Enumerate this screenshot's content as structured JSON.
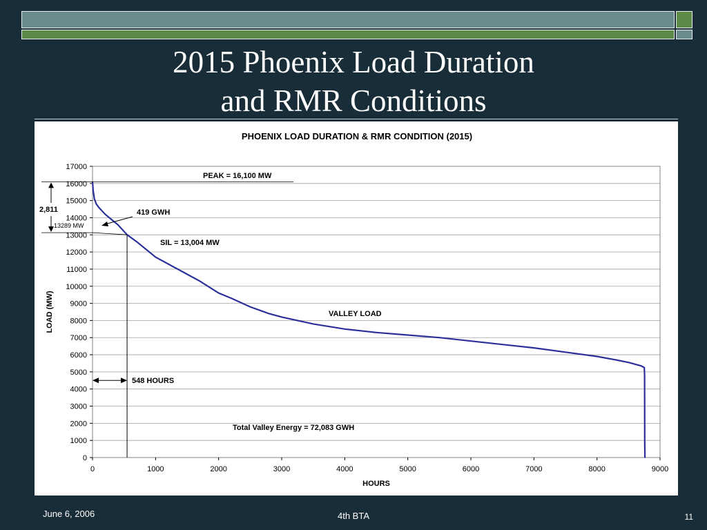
{
  "slide": {
    "title_line1": "2015 Phoenix Load Duration",
    "title_line2": "and RMR Conditions",
    "footer_date": "June 6, 2006",
    "footer_center": "4th BTA",
    "page_number": "11"
  },
  "chart_data": {
    "type": "line",
    "title": "PHOENIX LOAD DURATION & RMR CONDITION (2015)",
    "xlabel": "HOURS",
    "ylabel": "LOAD (MW)",
    "xlim": [
      0,
      9000
    ],
    "ylim": [
      0,
      17000
    ],
    "x_ticks": [
      0,
      1000,
      2000,
      3000,
      4000,
      5000,
      6000,
      7000,
      8000,
      9000
    ],
    "y_ticks": [
      0,
      1000,
      2000,
      3000,
      4000,
      5000,
      6000,
      7000,
      8000,
      9000,
      10000,
      11000,
      12000,
      13000,
      14000,
      15000,
      16000,
      17000
    ],
    "grid": "horizontal",
    "series": [
      {
        "color": "#2b2f9a",
        "x": [
          0,
          10,
          30,
          60,
          100,
          200,
          300,
          400,
          548,
          700,
          900,
          1000,
          1200,
          1500,
          1700,
          2000,
          2200,
          2500,
          2800,
          3000,
          3500,
          4000,
          4500,
          5000,
          5500,
          6000,
          6500,
          7000,
          7500,
          8000,
          8300,
          8500,
          8700,
          8750,
          8755,
          8757,
          8760
        ],
        "y": [
          16100,
          15600,
          15100,
          14800,
          14600,
          14200,
          13900,
          13600,
          13004,
          12600,
          12000,
          11700,
          11300,
          10700,
          10300,
          9600,
          9300,
          8800,
          8400,
          8200,
          7800,
          7500,
          7300,
          7150,
          7000,
          6800,
          6600,
          6400,
          6150,
          5900,
          5700,
          5550,
          5350,
          5250,
          4800,
          1000,
          0
        ]
      }
    ],
    "annotations": {
      "peak": "PEAK = 16,100 MW",
      "energy_above_sil": "419 GWH",
      "sil": "SIL = 13,004 MW",
      "valley": "VALLEY LOAD",
      "hours": "548 HOURS",
      "total_valley": "Total Valley Energy = 72,083 GWH",
      "delta": "2,811",
      "level": "13289 MW"
    },
    "markers": {
      "peak_mw": 16100,
      "sil_mw": 13004,
      "level_mw": 13289,
      "sil_hours": 548
    }
  }
}
